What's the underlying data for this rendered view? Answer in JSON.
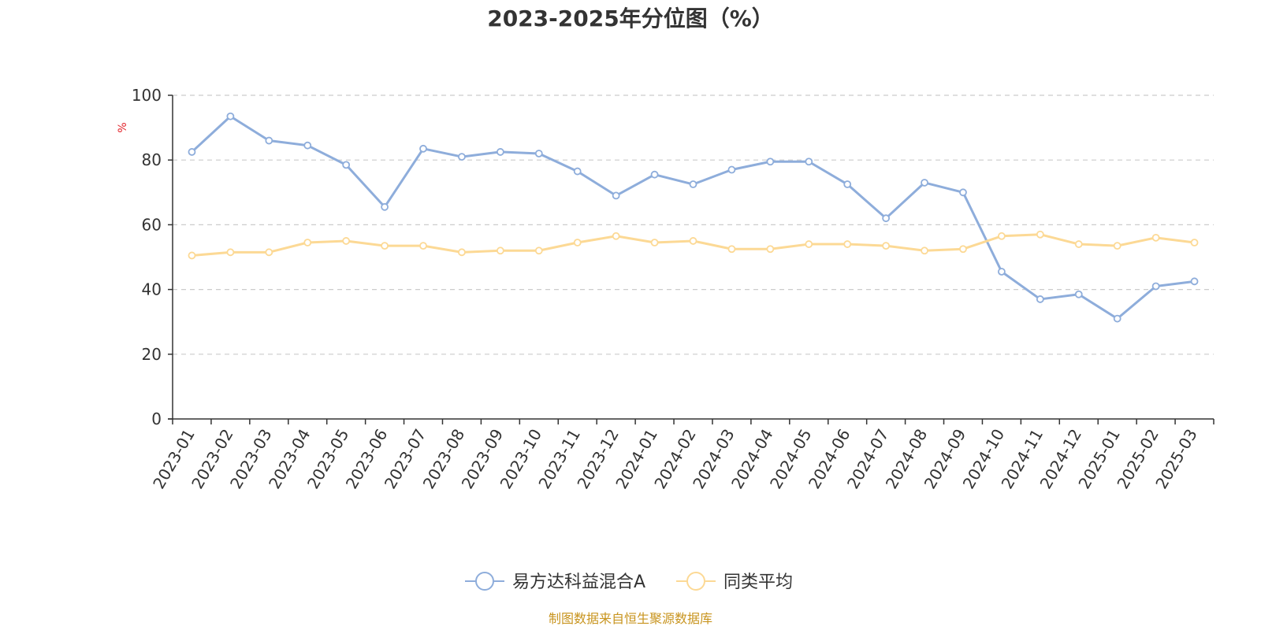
{
  "chart_data": {
    "type": "line",
    "title": "2023-2025年分位图（%）",
    "ylabel": "%",
    "ylim": [
      0,
      100
    ],
    "yticks": [
      "0",
      "20",
      "40",
      "60",
      "80",
      "100"
    ],
    "grid": true,
    "legend_position": "bottom-center",
    "categories": [
      "2023-01",
      "2023-02",
      "2023-03",
      "2023-04",
      "2023-05",
      "2023-06",
      "2023-07",
      "2023-08",
      "2023-09",
      "2023-10",
      "2023-11",
      "2023-12",
      "2024-01",
      "2024-02",
      "2024-03",
      "2024-04",
      "2024-05",
      "2024-06",
      "2024-07",
      "2024-08",
      "2024-09",
      "2024-10",
      "2024-11",
      "2024-12",
      "2025-01",
      "2025-02",
      "2025-03"
    ],
    "series": [
      {
        "name": "易方达科益混合A",
        "color": "#8eaddb",
        "values": [
          82.5,
          93.5,
          86,
          84.5,
          78.5,
          65.5,
          83.5,
          81,
          82.5,
          82,
          76.5,
          69,
          75.5,
          72.5,
          77,
          79.5,
          79.5,
          72.5,
          62,
          73,
          70,
          45.5,
          37,
          38.5,
          31,
          41,
          42.5
        ]
      },
      {
        "name": "同类平均",
        "color": "#fcd995",
        "values": [
          50.5,
          51.5,
          51.5,
          54.5,
          55,
          53.5,
          53.5,
          51.5,
          52,
          52,
          54.5,
          56.5,
          54.5,
          55,
          52.5,
          52.5,
          54,
          54,
          53.5,
          52,
          52.5,
          56.5,
          57,
          54,
          53.5,
          56,
          54.5
        ]
      }
    ],
    "unit_color": "#e3242b"
  },
  "footer": {
    "source": "制图数据来自恒生聚源数据库",
    "source_color": "#c8941e"
  }
}
